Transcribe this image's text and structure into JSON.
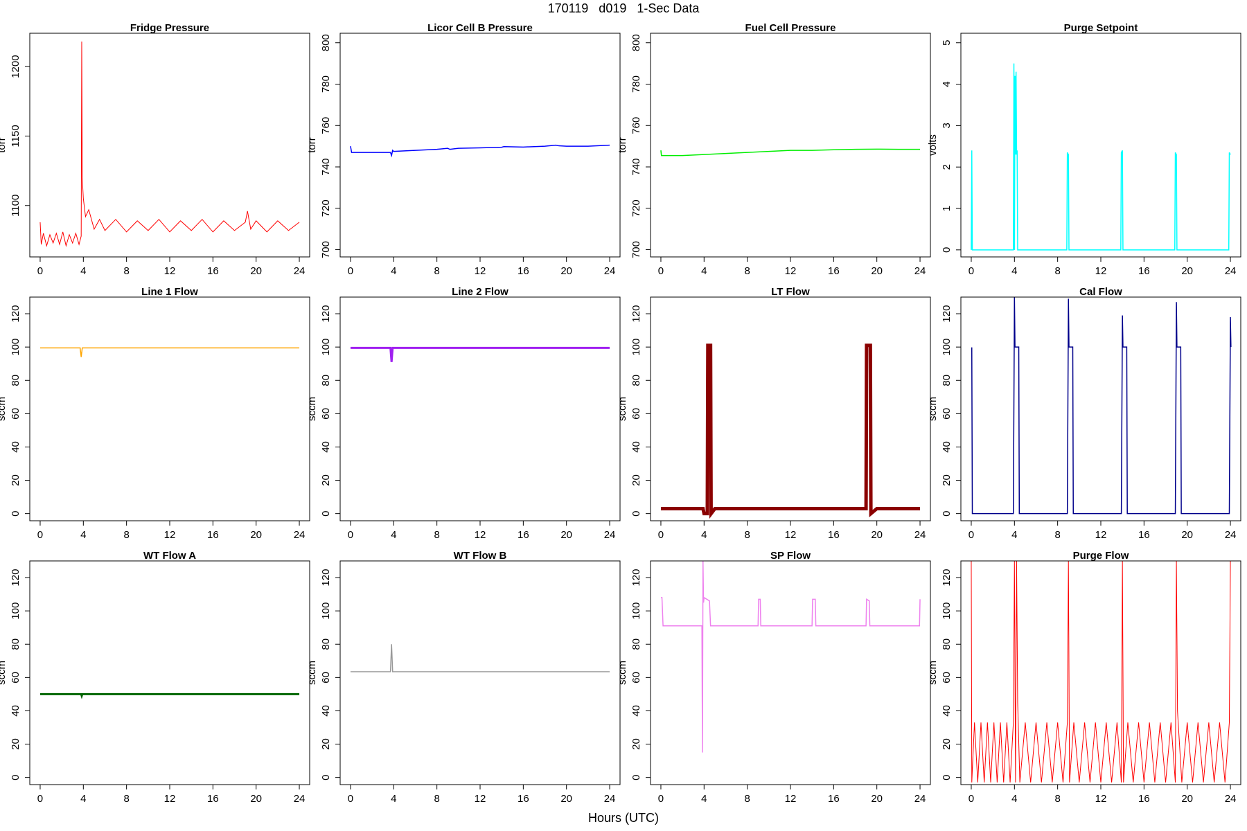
{
  "title": "170119   d019   1-Sec Data",
  "x_label": "Hours (UTC)",
  "chart_data": [
    {
      "type": "line",
      "title": "Fridge Pressure",
      "y_label": "torr",
      "xlim": [
        -0.96,
        24.96
      ],
      "xticks": [
        0,
        4,
        8,
        12,
        16,
        20,
        24
      ],
      "ylim": [
        1063,
        1224
      ],
      "yticks": [
        1100,
        1150,
        1200
      ],
      "x": [
        0,
        0.1,
        0.3,
        0.6,
        0.9,
        1.2,
        1.5,
        1.8,
        2.1,
        2.4,
        2.7,
        3,
        3.3,
        3.6,
        3.8,
        3.85,
        3.9,
        4,
        4.2,
        4.5,
        5,
        5.5,
        6,
        7,
        8,
        9,
        10,
        11,
        12,
        13,
        14,
        15,
        16,
        17,
        18,
        19,
        19.2,
        19.5,
        20,
        21,
        22,
        23,
        24
      ],
      "series": [
        {
          "color": "#ff0000",
          "values": [
            1088,
            1072,
            1080,
            1071,
            1079,
            1073,
            1080,
            1072,
            1081,
            1071,
            1079,
            1073,
            1080,
            1072,
            1078,
            1218,
            1120,
            1105,
            1092,
            1097,
            1083,
            1090,
            1082,
            1090,
            1081,
            1089,
            1082,
            1090,
            1081,
            1089,
            1082,
            1090,
            1081,
            1089,
            1082,
            1088,
            1096,
            1083,
            1089,
            1081,
            1089,
            1082,
            1088
          ]
        }
      ]
    },
    {
      "type": "line",
      "title": "Licor Cell B Pressure",
      "y_label": "torr",
      "xlim": [
        -0.96,
        24.96
      ],
      "xticks": [
        0,
        4,
        8,
        12,
        16,
        20,
        24
      ],
      "ylim": [
        696.5,
        804.6
      ],
      "yticks": [
        700,
        720,
        740,
        760,
        780,
        800
      ],
      "x": [
        0,
        0.1,
        1,
        2,
        3,
        3.7,
        3.8,
        3.9,
        4,
        6,
        8,
        9,
        9.2,
        10,
        12,
        14,
        14.2,
        16,
        18,
        19,
        19.3,
        20,
        22,
        24
      ],
      "series": [
        {
          "color": "#0000ff",
          "values": [
            750,
            747,
            747,
            747,
            747,
            747,
            745.5,
            748,
            747.5,
            748,
            748.5,
            749,
            748.5,
            749,
            749.2,
            749.5,
            749.8,
            749.6,
            750,
            750.5,
            750.2,
            750,
            750,
            750.5
          ]
        }
      ]
    },
    {
      "type": "line",
      "title": "Fuel Cell Pressure",
      "y_label": "torr",
      "xlim": [
        -0.96,
        24.96
      ],
      "xticks": [
        0,
        4,
        8,
        12,
        16,
        20,
        24
      ],
      "ylim": [
        696.5,
        804.6
      ],
      "yticks": [
        700,
        720,
        740,
        760,
        780,
        800
      ],
      "x": [
        0,
        0.05,
        0.1,
        1,
        2,
        4,
        6,
        8,
        10,
        12,
        14,
        16,
        18,
        20,
        22,
        24
      ],
      "series": [
        {
          "color": "#00ee00",
          "values": [
            748,
            745.5,
            745.5,
            745.5,
            745.5,
            746,
            746.5,
            747,
            747.5,
            748,
            748,
            748.3,
            748.5,
            748.6,
            748.5,
            748.5
          ]
        }
      ]
    },
    {
      "type": "line",
      "title": "Purge Setpoint",
      "y_label": "volts",
      "xlim": [
        -0.96,
        24.96
      ],
      "xticks": [
        0,
        4,
        8,
        12,
        16,
        20,
        24
      ],
      "ylim": [
        -0.17,
        5.23
      ],
      "yticks": [
        0,
        1,
        2,
        3,
        4,
        5
      ],
      "x": [
        0,
        0.05,
        0.1,
        3.9,
        3.95,
        4.0,
        4.05,
        4.1,
        4.15,
        4.2,
        4.25,
        4.3,
        4.35,
        4.4,
        8.85,
        8.9,
        9.0,
        9.05,
        9.1,
        13.85,
        13.9,
        14.0,
        14.05,
        14.1,
        18.85,
        18.9,
        19.0,
        19.05,
        19.1,
        23.85,
        23.9,
        24.0
      ],
      "series": [
        {
          "color": "#00ffff",
          "values": [
            0,
            2.4,
            0,
            0,
            4.5,
            0,
            4.2,
            2.3,
            4.3,
            2.3,
            2.4,
            0,
            0,
            0,
            0,
            2.35,
            2.3,
            0,
            0,
            0,
            2.35,
            2.4,
            0,
            0,
            0,
            2.35,
            2.3,
            0,
            0,
            0,
            2.35,
            2.3
          ]
        }
      ]
    },
    {
      "type": "line",
      "title": "Line 1 Flow",
      "y_label": "sccm",
      "xlim": [
        -0.96,
        24.96
      ],
      "xticks": [
        0,
        4,
        8,
        12,
        16,
        20,
        24
      ],
      "ylim": [
        -4.3,
        130
      ],
      "yticks": [
        0,
        20,
        40,
        60,
        80,
        100,
        120
      ],
      "x": [
        0,
        3.7,
        3.8,
        3.9,
        4,
        24
      ],
      "series": [
        {
          "color": "#ffa500",
          "values": [
            99.5,
            99.5,
            94,
            99.5,
            99.5,
            99.5
          ]
        }
      ]
    },
    {
      "type": "line",
      "title": "Line 2 Flow",
      "y_label": "sccm",
      "xlim": [
        -0.96,
        24.96
      ],
      "xticks": [
        0,
        4,
        8,
        12,
        16,
        20,
        24
      ],
      "ylim": [
        -4.3,
        130
      ],
      "yticks": [
        0,
        20,
        40,
        60,
        80,
        100,
        120
      ],
      "x": [
        0,
        3.7,
        3.8,
        3.9,
        4,
        24
      ],
      "series": [
        {
          "color": "#a020f0",
          "values": [
            99.5,
            99.5,
            91,
            99.5,
            99.5,
            99.5
          ]
        }
      ]
    },
    {
      "type": "line",
      "title": "LT Flow",
      "y_label": "sccm",
      "xlim": [
        -0.96,
        24.96
      ],
      "xticks": [
        0,
        4,
        8,
        12,
        16,
        20,
        24
      ],
      "ylim": [
        -4.3,
        130
      ],
      "yticks": [
        0,
        20,
        40,
        60,
        80,
        100,
        120
      ],
      "x": [
        0,
        1,
        2,
        3,
        3.9,
        4.0,
        4.3,
        4.35,
        4.6,
        4.65,
        5,
        8,
        12,
        16,
        19.0,
        19.05,
        19.4,
        19.45,
        20,
        24
      ],
      "series": [
        {
          "color": "#8b0000",
          "values": [
            3,
            3,
            3,
            3,
            3,
            0,
            0,
            101,
            101,
            0,
            3,
            3,
            3,
            3,
            3,
            101,
            101,
            0,
            3,
            3
          ]
        }
      ]
    },
    {
      "type": "line",
      "title": "Cal Flow",
      "y_label": "sccm",
      "xlim": [
        -0.96,
        24.96
      ],
      "xticks": [
        0,
        4,
        8,
        12,
        16,
        20,
        24
      ],
      "ylim": [
        -4.3,
        130
      ],
      "yticks": [
        0,
        20,
        40,
        60,
        80,
        100,
        120
      ],
      "x": [
        0,
        0.05,
        0.1,
        0.15,
        3.9,
        4.0,
        4.05,
        4.1,
        4.4,
        4.45,
        8.9,
        9.0,
        9.05,
        9.4,
        9.45,
        13.9,
        14.0,
        14.05,
        14.4,
        14.45,
        18.9,
        19.0,
        19.05,
        19.4,
        19.45,
        23.9,
        24.0,
        24.05
      ],
      "series": [
        {
          "color": "#00008b",
          "values": [
            99.5,
            99.5,
            0,
            0,
            0,
            130,
            100,
            100,
            100,
            0,
            0,
            129,
            100,
            100,
            0,
            0,
            119,
            100,
            100,
            0,
            0,
            127,
            100,
            100,
            0,
            0,
            118,
            100
          ]
        }
      ]
    },
    {
      "type": "line",
      "title": "WT Flow A",
      "y_label": "sccm",
      "xlim": [
        -0.96,
        24.96
      ],
      "xticks": [
        0,
        4,
        8,
        12,
        16,
        20,
        24
      ],
      "ylim": [
        -4.3,
        130
      ],
      "yticks": [
        0,
        20,
        40,
        60,
        80,
        100,
        120
      ],
      "x": [
        0,
        3.8,
        3.85,
        3.9,
        24
      ],
      "series": [
        {
          "color": "#006400",
          "values": [
            50,
            50,
            49,
            50,
            50
          ]
        }
      ]
    },
    {
      "type": "line",
      "title": "WT Flow B",
      "y_label": "sccm",
      "xlim": [
        -0.96,
        24.96
      ],
      "xticks": [
        0,
        4,
        8,
        12,
        16,
        20,
        24
      ],
      "ylim": [
        -4.3,
        130
      ],
      "yticks": [
        0,
        20,
        40,
        60,
        80,
        100,
        120
      ],
      "x": [
        0,
        3.7,
        3.8,
        3.9,
        24
      ],
      "series": [
        {
          "color": "#999999",
          "values": [
            63.5,
            63.5,
            80,
            63.5,
            63.5
          ]
        }
      ]
    },
    {
      "type": "line",
      "title": "SP Flow",
      "y_label": "sccm",
      "xlim": [
        -0.96,
        24.96
      ],
      "xticks": [
        0,
        4,
        8,
        12,
        16,
        20,
        24
      ],
      "ylim": [
        -4.3,
        130
      ],
      "yticks": [
        0,
        20,
        40,
        60,
        80,
        100,
        120
      ],
      "x": [
        0,
        0.1,
        0.2,
        3.8,
        3.85,
        3.9,
        3.95,
        4.0,
        4.5,
        4.6,
        9.0,
        9.05,
        9.2,
        9.25,
        14.0,
        14.05,
        14.3,
        14.35,
        19.0,
        19.05,
        19.3,
        19.35,
        23.95,
        24.0
      ],
      "series": [
        {
          "color": "#ee82ee",
          "values": [
            108,
            108,
            91,
            91,
            15,
            130,
            105,
            108,
            106,
            91,
            91,
            107,
            107,
            91,
            91,
            107,
            107,
            91,
            91,
            107,
            106,
            91,
            91,
            107
          ]
        }
      ]
    },
    {
      "type": "line",
      "title": "Purge Flow",
      "y_label": "sccm",
      "xlim": [
        -0.96,
        24.96
      ],
      "xticks": [
        0,
        4,
        8,
        12,
        16,
        20,
        24
      ],
      "ylim": [
        -4.3,
        130
      ],
      "yticks": [
        0,
        20,
        40,
        60,
        80,
        100,
        120
      ],
      "x": [
        0,
        0.05,
        0.3,
        0.6,
        0.9,
        1.2,
        1.5,
        1.8,
        2.1,
        2.4,
        2.7,
        3,
        3.3,
        3.6,
        3.9,
        4,
        4.1,
        4.2,
        4.3,
        4.5,
        5,
        5.5,
        6,
        6.5,
        7,
        7.5,
        8,
        8.5,
        8.9,
        9,
        9.1,
        9.5,
        10,
        10.5,
        11,
        11.5,
        12,
        12.5,
        13,
        13.5,
        13.9,
        14,
        14.1,
        14.5,
        15,
        15.5,
        16,
        16.5,
        17,
        17.5,
        18,
        18.5,
        18.9,
        19,
        19.1,
        19.5,
        20,
        20.5,
        21,
        21.5,
        22,
        22.5,
        23,
        23.5,
        23.9,
        24
      ],
      "series": [
        {
          "color": "#ff0000",
          "values": [
            130,
            -3,
            33,
            -3,
            33,
            -3,
            33,
            -3,
            33,
            -3,
            33,
            -3,
            33,
            -3,
            33,
            130,
            -3,
            130,
            45,
            -3,
            33,
            -3,
            33,
            -3,
            33,
            -3,
            33,
            -3,
            33,
            130,
            -3,
            33,
            -3,
            33,
            -3,
            33,
            -3,
            33,
            -3,
            33,
            -3,
            130,
            -3,
            33,
            -3,
            33,
            -3,
            33,
            -3,
            33,
            -3,
            33,
            -3,
            130,
            40,
            -3,
            33,
            -3,
            33,
            -3,
            33,
            -3,
            33,
            -3,
            33,
            130
          ]
        }
      ]
    }
  ]
}
